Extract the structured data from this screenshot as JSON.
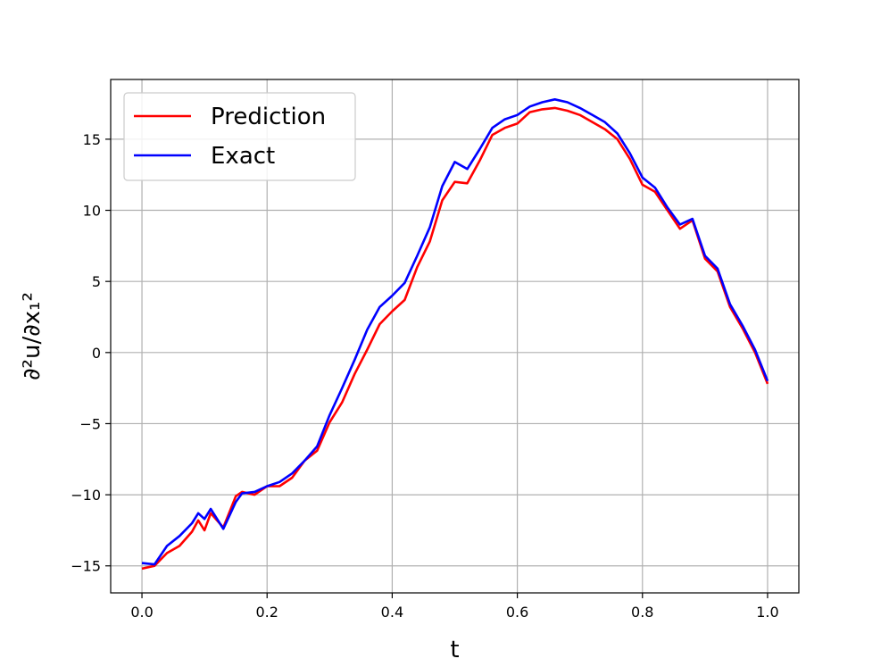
{
  "chart_data": {
    "type": "line",
    "title": "",
    "xlabel": "t",
    "ylabel": "∂²u/∂x₁²",
    "xlim": [
      -0.05,
      1.05
    ],
    "ylim": [
      -16.9,
      19.2
    ],
    "xticks": [
      0.0,
      0.2,
      0.4,
      0.6,
      0.8,
      1.0
    ],
    "xtick_labels": [
      "0.0",
      "0.2",
      "0.4",
      "0.6",
      "0.8",
      "1.0"
    ],
    "yticks": [
      -15,
      -10,
      -5,
      0,
      5,
      10,
      15
    ],
    "ytick_labels": [
      "−15",
      "−10",
      "−5",
      "0",
      "5",
      "10",
      "15"
    ],
    "grid": true,
    "legend_position": "top-left",
    "series": [
      {
        "name": "Prediction",
        "color": "#ff0000",
        "x": [
          0.0,
          0.02,
          0.04,
          0.06,
          0.08,
          0.09,
          0.1,
          0.11,
          0.13,
          0.15,
          0.16,
          0.18,
          0.2,
          0.22,
          0.24,
          0.26,
          0.28,
          0.3,
          0.32,
          0.34,
          0.36,
          0.38,
          0.4,
          0.42,
          0.44,
          0.46,
          0.48,
          0.5,
          0.52,
          0.54,
          0.56,
          0.58,
          0.6,
          0.62,
          0.64,
          0.66,
          0.68,
          0.7,
          0.72,
          0.74,
          0.76,
          0.78,
          0.8,
          0.82,
          0.84,
          0.86,
          0.88,
          0.9,
          0.92,
          0.94,
          0.96,
          0.98,
          1.0
        ],
        "values": [
          -15.2,
          -15.0,
          -14.1,
          -13.6,
          -12.6,
          -11.8,
          -12.5,
          -11.3,
          -12.3,
          -10.1,
          -9.8,
          -10.0,
          -9.4,
          -9.4,
          -8.8,
          -7.6,
          -6.9,
          -4.9,
          -3.5,
          -1.5,
          0.2,
          2.0,
          2.9,
          3.7,
          6.0,
          7.8,
          10.7,
          12.0,
          11.9,
          13.5,
          15.3,
          15.8,
          16.1,
          16.9,
          17.1,
          17.2,
          17.0,
          16.7,
          16.2,
          15.7,
          15.0,
          13.6,
          11.8,
          11.3,
          10.0,
          8.7,
          9.3,
          6.6,
          5.7,
          3.2,
          1.7,
          0.0,
          -2.2
        ]
      },
      {
        "name": "Exact",
        "color": "#0000ff",
        "x": [
          0.0,
          0.02,
          0.04,
          0.06,
          0.08,
          0.09,
          0.1,
          0.11,
          0.13,
          0.15,
          0.16,
          0.18,
          0.2,
          0.22,
          0.24,
          0.26,
          0.28,
          0.3,
          0.32,
          0.34,
          0.36,
          0.38,
          0.4,
          0.42,
          0.44,
          0.46,
          0.48,
          0.5,
          0.52,
          0.54,
          0.56,
          0.58,
          0.6,
          0.62,
          0.64,
          0.66,
          0.68,
          0.7,
          0.72,
          0.74,
          0.76,
          0.78,
          0.8,
          0.82,
          0.84,
          0.86,
          0.88,
          0.9,
          0.92,
          0.94,
          0.96,
          0.98,
          1.0
        ],
        "values": [
          -14.8,
          -14.9,
          -13.6,
          -12.9,
          -12.0,
          -11.3,
          -11.7,
          -11.0,
          -12.4,
          -10.5,
          -9.9,
          -9.8,
          -9.4,
          -9.1,
          -8.5,
          -7.6,
          -6.6,
          -4.4,
          -2.5,
          -0.5,
          1.6,
          3.2,
          4.0,
          4.9,
          6.8,
          8.8,
          11.7,
          13.4,
          12.9,
          14.3,
          15.8,
          16.4,
          16.7,
          17.3,
          17.6,
          17.8,
          17.6,
          17.2,
          16.7,
          16.2,
          15.4,
          14.0,
          12.3,
          11.6,
          10.2,
          9.0,
          9.4,
          6.8,
          5.9,
          3.4,
          1.9,
          0.2,
          -2.0
        ]
      }
    ]
  }
}
